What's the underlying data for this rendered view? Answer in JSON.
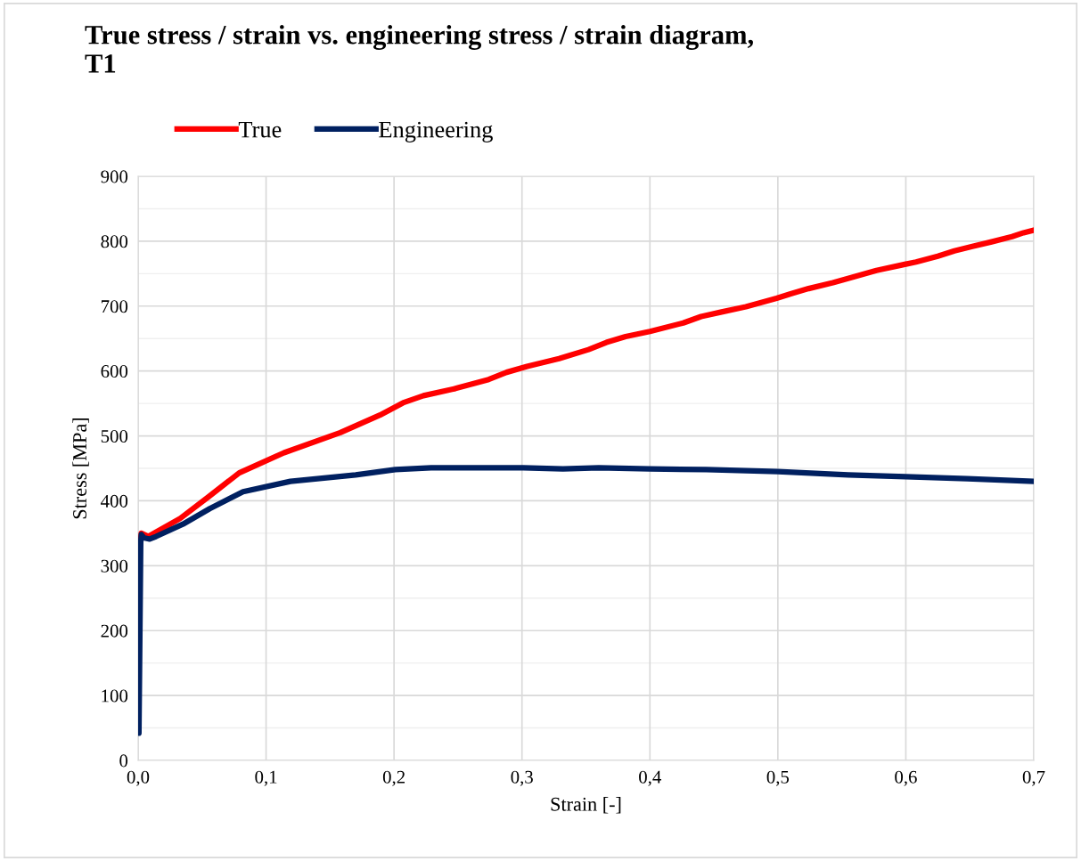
{
  "chart_data": {
    "type": "line",
    "title": "True stress / strain vs. engineering stress / strain diagram,\nT1",
    "xlabel": "Strain [-]",
    "ylabel": "Stress [MPa]",
    "series": [
      {
        "name": "True",
        "color": "#ff0000",
        "x": [
          0.002,
          0.0025,
          0.008,
          0.033,
          0.055,
          0.079,
          0.114,
          0.158,
          0.189,
          0.207,
          0.223,
          0.248,
          0.274,
          0.288,
          0.304,
          0.329,
          0.352,
          0.366,
          0.381,
          0.4,
          0.426,
          0.44,
          0.456,
          0.475,
          0.499,
          0.51,
          0.524,
          0.543,
          0.561,
          0.577,
          0.596,
          0.608,
          0.625,
          0.638,
          0.652,
          0.667,
          0.683,
          0.692,
          0.7
        ],
        "values": [
          342,
          350,
          345,
          373,
          406,
          443,
          474,
          505,
          532,
          551,
          562,
          573,
          587,
          598,
          607,
          619,
          633,
          644,
          653,
          661,
          674,
          684,
          691,
          699,
          712,
          719,
          727,
          736,
          746,
          755,
          763,
          768,
          777,
          785,
          792,
          799,
          807,
          813,
          817
        ]
      },
      {
        "name": "Engineering",
        "color": "#002060",
        "x": [
          0.0006,
          0.002,
          0.0025,
          0.0045,
          0.009,
          0.014,
          0.035,
          0.056,
          0.082,
          0.119,
          0.17,
          0.201,
          0.229,
          0.301,
          0.332,
          0.36,
          0.4,
          0.444,
          0.5,
          0.555,
          0.6,
          0.648,
          0.7
        ],
        "values": [
          42,
          336,
          348,
          343,
          341,
          345,
          364,
          388,
          414,
          430,
          440,
          448,
          451,
          451,
          449,
          451,
          449,
          448,
          445,
          440,
          437,
          434,
          430
        ]
      }
    ],
    "xlim": [
      0,
      0.7
    ],
    "ylim": [
      0,
      900
    ],
    "xticks": [
      {
        "value": 0,
        "label": "0,0"
      },
      {
        "value": 0.1,
        "label": "0,1"
      },
      {
        "value": 0.2,
        "label": "0,2"
      },
      {
        "value": 0.3,
        "label": "0,3"
      },
      {
        "value": 0.4,
        "label": "0,4"
      },
      {
        "value": 0.5,
        "label": "0,5"
      },
      {
        "value": 0.6,
        "label": "0,6"
      },
      {
        "value": 0.7,
        "label": "0,7"
      }
    ],
    "yticks": [
      0,
      {
        "value": 50,
        "label": null
      },
      100,
      {
        "value": 150,
        "label": null
      },
      200,
      {
        "value": 250,
        "label": null
      },
      300,
      {
        "value": 350,
        "label": null
      },
      400,
      {
        "value": 450,
        "label": null
      },
      500,
      {
        "value": 550,
        "label": null
      },
      600,
      {
        "value": 650,
        "label": null
      },
      700,
      {
        "value": 750,
        "label": null
      },
      800,
      {
        "value": 850,
        "label": null
      },
      900
    ],
    "grid": true,
    "legend": "top",
    "marker": "none",
    "line_style": "solid"
  }
}
